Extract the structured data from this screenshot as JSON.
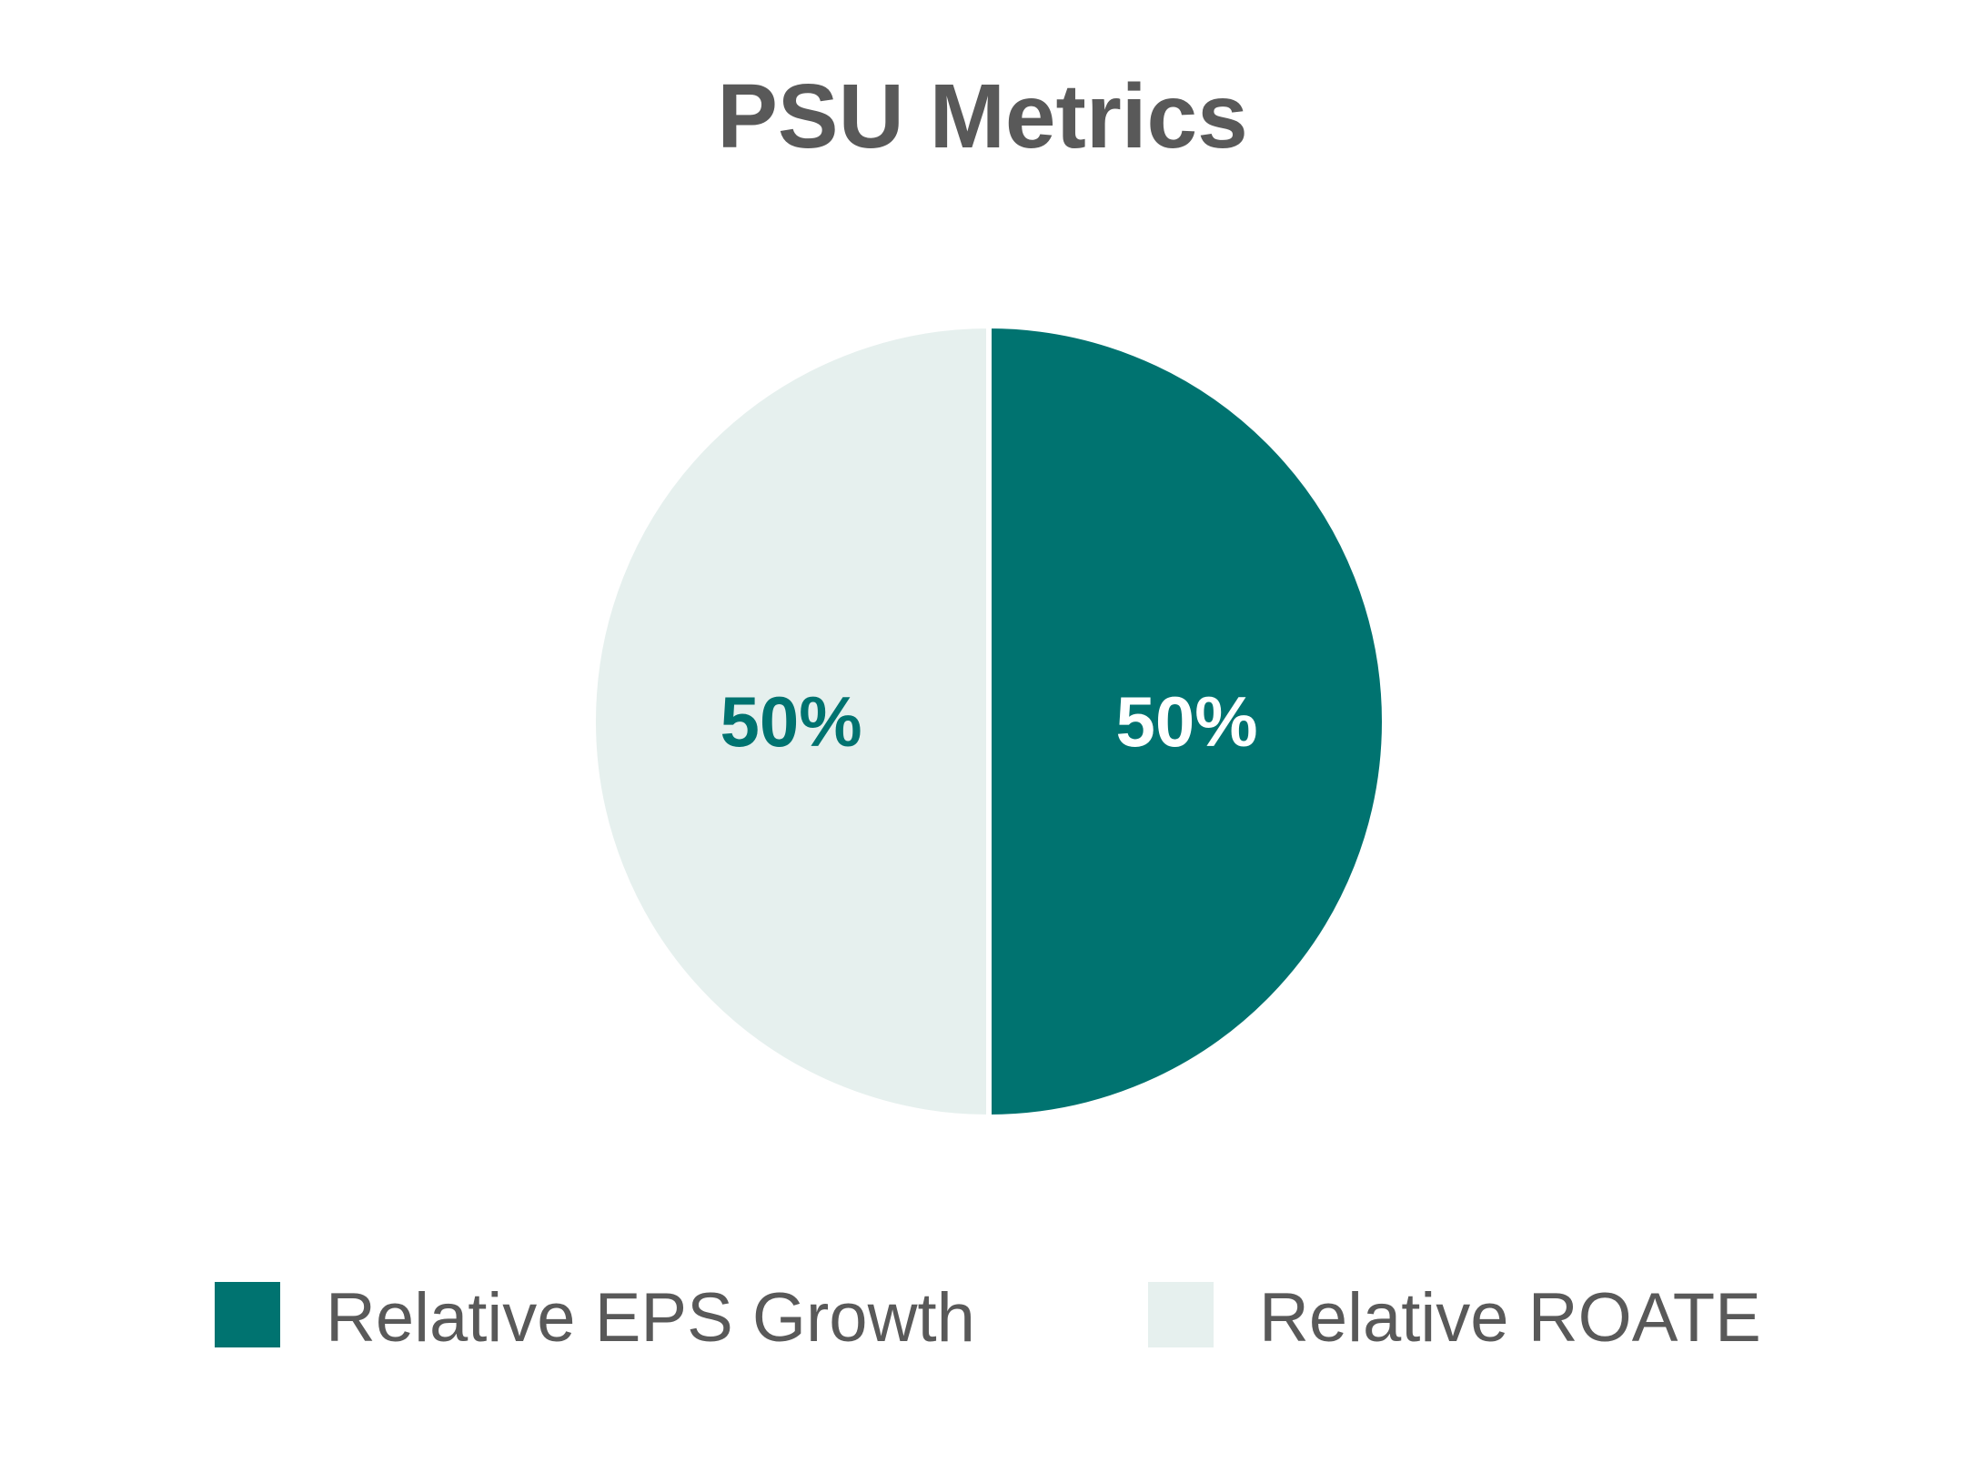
{
  "chart_data": {
    "type": "pie",
    "title": "PSU Metrics",
    "categories": [
      "Relative EPS Growth",
      "Relative ROATE"
    ],
    "values": [
      50,
      50
    ],
    "labels": [
      "50%",
      "50%"
    ],
    "colors": [
      "#007370",
      "#E6F0EE"
    ],
    "label_colors": [
      "#FFFFFF",
      "#007370"
    ],
    "legend": {
      "position": "bottom",
      "entries": [
        "Relative EPS Growth",
        "Relative ROATE"
      ]
    }
  }
}
